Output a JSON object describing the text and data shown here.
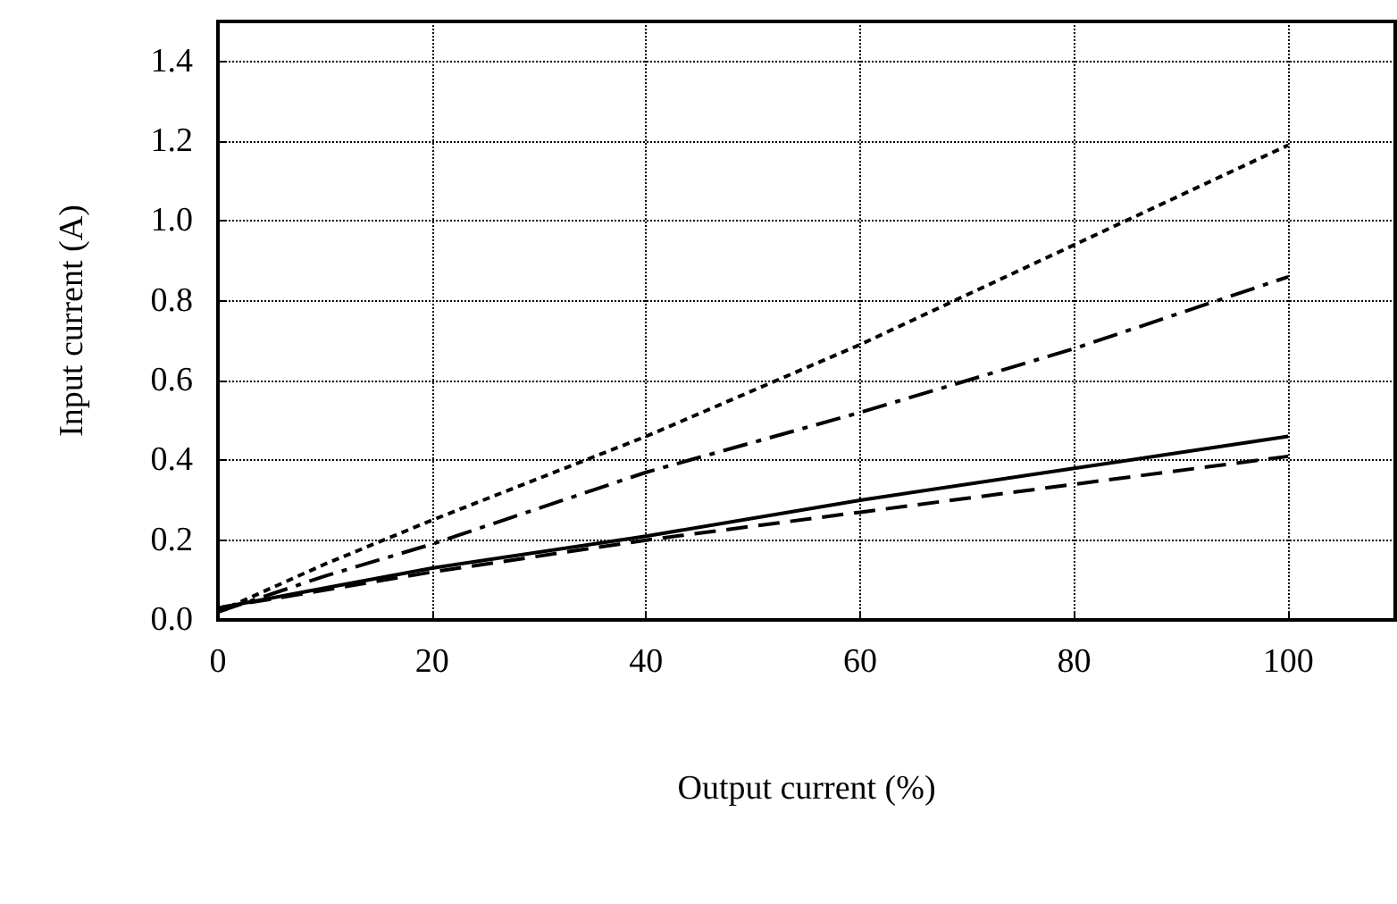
{
  "chart_data": {
    "type": "line",
    "xlabel": "Output current (%)",
    "ylabel": "Input current (A)",
    "x": [
      0,
      10,
      20,
      40,
      60,
      80,
      100
    ],
    "xlim": [
      0,
      110
    ],
    "xticks": [
      0,
      20,
      40,
      60,
      80,
      100
    ],
    "ylim": [
      0,
      1.5
    ],
    "yticks": [
      {
        "value": 0,
        "label": "0.0"
      },
      0.2,
      0.4,
      0.6,
      0.8,
      {
        "value": 1,
        "label": "1.0"
      },
      1.2,
      1.4
    ],
    "grid": true,
    "marker": "none",
    "series": [
      {
        "color": "#000000",
        "line_style": "dotted",
        "values": [
          0.02,
          0.14,
          0.25,
          0.46,
          0.69,
          0.94,
          1.19
        ]
      },
      {
        "color": "#000000",
        "line_style": "dashdot",
        "values": [
          0.02,
          0.11,
          0.19,
          0.37,
          0.52,
          0.68,
          0.86
        ]
      },
      {
        "color": "#000000",
        "line_style": "solid",
        "values": [
          0.03,
          0.08,
          0.13,
          0.21,
          0.3,
          0.38,
          0.46
        ]
      },
      {
        "color": "#000000",
        "line_style": "dashed",
        "values": [
          0.03,
          0.075,
          0.12,
          0.2,
          0.27,
          0.34,
          0.41
        ]
      }
    ]
  }
}
